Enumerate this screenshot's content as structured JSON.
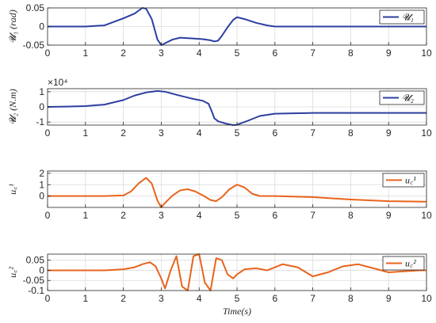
{
  "chart_data": [
    {
      "type": "line",
      "ylabel": "𝓤₁ (rad)",
      "xlim": [
        0,
        10
      ],
      "ylim": [
        -0.05,
        0.05
      ],
      "xticks": [
        "0",
        "1",
        "2",
        "3",
        "4",
        "5",
        "6",
        "7",
        "8",
        "9",
        "10"
      ],
      "yticks": [
        {
          "value": 0.05,
          "label": "0.05"
        },
        {
          "value": 0,
          "label": "0"
        },
        {
          "value": -0.05,
          "label": "-0.05"
        }
      ],
      "grid": true,
      "legend_position": "top-right",
      "series": [
        {
          "name": "𝓤₁",
          "color": "#2c3fa0",
          "x": [
            0,
            0.5,
            1,
            1.5,
            2,
            2.3,
            2.5,
            2.6,
            2.75,
            2.9,
            3.0,
            3.1,
            3.3,
            3.5,
            3.8,
            4.1,
            4.3,
            4.4,
            4.5,
            4.6,
            4.75,
            4.9,
            5.0,
            5.2,
            5.5,
            5.8,
            6.0,
            7,
            8,
            9,
            10
          ],
          "y": [
            0,
            0,
            0,
            0.003,
            0.022,
            0.035,
            0.05,
            0.048,
            0.02,
            -0.035,
            -0.05,
            -0.045,
            -0.035,
            -0.03,
            -0.032,
            -0.034,
            -0.037,
            -0.04,
            -0.038,
            -0.025,
            -0.002,
            0.018,
            0.025,
            0.02,
            0.01,
            0.003,
            0,
            0,
            0,
            0,
            0
          ]
        }
      ]
    },
    {
      "type": "line",
      "ylabel": "𝓤₂ (N.m)",
      "exponent": "×10⁴",
      "xlim": [
        0,
        10
      ],
      "ylim": [
        -1.2,
        1.2
      ],
      "xticks": [
        "0",
        "1",
        "2",
        "3",
        "4",
        "5",
        "6",
        "7",
        "8",
        "9",
        "10"
      ],
      "yticks": [
        {
          "value": 1,
          "label": "1"
        },
        {
          "value": 0,
          "label": "0"
        },
        {
          "value": -1,
          "label": "-1"
        }
      ],
      "grid": true,
      "legend_position": "top-right",
      "series": [
        {
          "name": "𝓤₂",
          "color": "#2c3fa0",
          "x": [
            0,
            0.5,
            1,
            1.5,
            2,
            2.3,
            2.6,
            2.9,
            3.1,
            3.4,
            3.8,
            4.1,
            4.25,
            4.35,
            4.4,
            4.5,
            4.7,
            4.9,
            5.0,
            5.3,
            5.6,
            6.0,
            7,
            8,
            9,
            10
          ],
          "y": [
            0,
            0.02,
            0.05,
            0.15,
            0.45,
            0.75,
            0.95,
            1.05,
            1.0,
            0.8,
            0.55,
            0.4,
            0.2,
            -0.4,
            -0.75,
            -0.95,
            -1.1,
            -1.2,
            -1.18,
            -0.9,
            -0.6,
            -0.45,
            -0.4,
            -0.4,
            -0.4,
            -0.4
          ]
        }
      ]
    },
    {
      "type": "line",
      "ylabel": "u꜀¹",
      "xlim": [
        0,
        10
      ],
      "ylim": [
        -1,
        2.2
      ],
      "xticks": [
        "0",
        "1",
        "2",
        "3",
        "4",
        "5",
        "6",
        "7",
        "8",
        "9",
        "10"
      ],
      "yticks": [
        {
          "value": 2,
          "label": "2"
        },
        {
          "value": 1,
          "label": "1"
        },
        {
          "value": 0,
          "label": "0"
        }
      ],
      "grid": true,
      "legend_position": "top-right",
      "series": [
        {
          "name": "u꜀¹",
          "color": "#e8641c",
          "x": [
            0,
            0.5,
            1,
            1.5,
            2,
            2.2,
            2.4,
            2.6,
            2.75,
            2.9,
            3.0,
            3.1,
            3.3,
            3.5,
            3.7,
            3.9,
            4.1,
            4.3,
            4.45,
            4.6,
            4.8,
            5.0,
            5.2,
            5.4,
            5.6,
            5.8,
            6.0,
            7,
            8,
            9,
            10
          ],
          "y": [
            0,
            0,
            0,
            0,
            0.05,
            0.4,
            1.1,
            1.6,
            1.1,
            -0.4,
            -1.0,
            -0.6,
            0.05,
            0.5,
            0.6,
            0.4,
            0.05,
            -0.35,
            -0.45,
            -0.1,
            0.6,
            1.0,
            0.75,
            0.2,
            0,
            0,
            0,
            -0.1,
            -0.3,
            -0.45,
            -0.5
          ]
        }
      ]
    },
    {
      "type": "line",
      "ylabel": "u꜀²",
      "xlabel": "Time(s)",
      "xlim": [
        0,
        10
      ],
      "ylim": [
        -0.1,
        0.08
      ],
      "xticks": [
        "0",
        "1",
        "2",
        "3",
        "4",
        "5",
        "6",
        "7",
        "8",
        "9",
        "10"
      ],
      "yticks": [
        {
          "value": 0.05,
          "label": "0.05"
        },
        {
          "value": 0,
          "label": "0"
        },
        {
          "value": -0.05,
          "label": "-0.05"
        },
        {
          "value": -0.1,
          "label": "-0.1"
        }
      ],
      "grid": true,
      "legend_position": "top-right",
      "series": [
        {
          "name": "u꜀²",
          "color": "#e8641c",
          "x": [
            0,
            0.5,
            1,
            1.5,
            2,
            2.3,
            2.5,
            2.7,
            2.85,
            3.0,
            3.1,
            3.25,
            3.4,
            3.55,
            3.7,
            3.85,
            4.0,
            4.15,
            4.3,
            4.45,
            4.6,
            4.75,
            4.9,
            5.0,
            5.2,
            5.5,
            5.8,
            6.2,
            6.6,
            7.0,
            7.4,
            7.8,
            8.2,
            8.6,
            9.0,
            9.4,
            9.8,
            10
          ],
          "y": [
            0,
            0,
            0,
            0,
            0.005,
            0.015,
            0.03,
            0.04,
            0.02,
            -0.04,
            -0.09,
            0.0,
            0.07,
            -0.08,
            -0.1,
            0.07,
            0.08,
            -0.06,
            -0.1,
            0.06,
            0.05,
            -0.02,
            -0.04,
            -0.02,
            0.005,
            0.01,
            0.0,
            0.03,
            0.015,
            -0.03,
            -0.01,
            0.02,
            0.03,
            0.01,
            -0.01,
            -0.005,
            0.0,
            0.0
          ]
        }
      ]
    }
  ]
}
